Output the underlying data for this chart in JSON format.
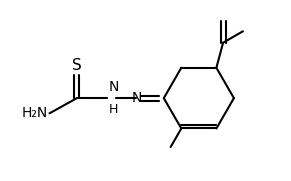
{
  "bg_color": "#ffffff",
  "line_color": "#000000",
  "lw": 1.5,
  "font_size": 10,
  "fig_width": 2.91,
  "fig_height": 1.81,
  "dpi": 100,
  "xlim": [
    0.0,
    9.5
  ],
  "ylim": [
    0.5,
    6.0
  ]
}
